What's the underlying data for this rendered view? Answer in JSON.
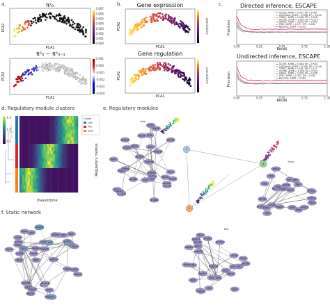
{
  "panels": {
    "a": {
      "letter": "a.",
      "title_top": "π²₀",
      "title_bottom": "π²₀ − π²₀₋₁",
      "xlabel": "PCA1",
      "ylabel": "PCA2",
      "xticks": [
        "-1",
        "0",
        "1",
        "2"
      ],
      "cbar_top": [
        "0.007",
        "0.006",
        "0.005",
        "0.004",
        "0.003",
        "0.002",
        "0.001",
        "0.000"
      ],
      "cbar_bottom": [
        "0.001",
        "0.000",
        "-0.001",
        "-0.002",
        "-0.003",
        "-0.004"
      ]
    },
    "b": {
      "letter": "b.",
      "title_top": "Gene expression",
      "title_bottom": "Gene regulation",
      "xlabel": "PCA1",
      "ylabel": "PCA2",
      "cbar_label": "pseudotime",
      "cbar_ticks": [
        "1.0",
        "0.8",
        "0.6",
        "0.4",
        "0.2",
        "0.0"
      ]
    },
    "c": {
      "letter": "c.",
      "title_top": "Directed inference, ESCAPE",
      "title_bottom": "Undirected inference, ESCAPE",
      "xlabel": "Recall",
      "ylabel": "Precision",
      "xticks": [
        "0.00",
        "0.25",
        "0.50",
        "0.75",
        "1.00"
      ],
      "legend_top": [
        "locaTE, AUPR = 0.457, EP = 0.497",
        "CellOracle, AUPR = 0.308, EP = 0.230",
        "TENET, AUPR = 0.286, EP = 0.208",
        "SCODE, AUPR = 0.283, EP = 0.211",
        "GRISLI, AUPR = 0.293, EP = 0.233",
        "PIDC, AUPR = 0.277, EP = 0.260",
        "Baseline, AUPR = 0.253"
      ],
      "legend_bottom": [
        "locaTE, AUPR = 0.464, EP = 0.504",
        "CellOracle, AUPR = 0.319, EP = 0.236",
        "TENET, AUPR = 0.291, EP = 0.217",
        "SCODE, AUPR = 0.299, EP = 0.231",
        "GRISLI, AUPR = 0.309, EP = 0.246",
        "PIDC, AUPR = 0.287, EP = 0.262",
        "Baseline, AUPR = 0.263"
      ]
    },
    "d": {
      "letter": "d. Regulatory module clusters",
      "xlabel": "Pseudotime",
      "ylabel": "Regulatory module",
      "legend_title": "Cluster",
      "legend": [
        "Late",
        "Mid",
        "Early"
      ],
      "cbar_ticks": [
        "1.5",
        "1.0",
        "0.5"
      ]
    },
    "e": {
      "letter": "e. Regulatory modules",
      "modules": [
        "Late",
        "Mid",
        "Early"
      ],
      "late_genes": [
        "Tcf7l1",
        "Nanog",
        "Tbx3",
        "Klf4",
        "Esrrb",
        "Dnmt3l",
        "Foxo1",
        "Lin28",
        "Pou5f1",
        "Sall4",
        "Zfp42",
        "Klf2",
        "Nr0b1",
        "Sox2",
        "Tcf3",
        "Hdac2",
        "Jarid2",
        "Mybl2",
        "Elf3",
        "Tfcp2l1",
        "Prdm14",
        "Kdm5b",
        "Hesx1",
        "Gata6",
        "Etv5",
        "Nr5a2",
        "Lin28a",
        "Creb3l2",
        "Rhox5",
        "Smad1",
        "Myc",
        "Utf1"
      ],
      "mid_genes": [
        "Nanog",
        "Tbx3",
        "Klf4",
        "Esrrb",
        "Otx2",
        "Foxd3",
        "Myc",
        "Sox2",
        "Hdac2",
        "Lin28",
        "Jarid2",
        "Tcf3",
        "Sall4",
        "Dnmt3l",
        "Pou5f1",
        "Rest",
        "Tcf7l1",
        "Nr0b1",
        "Zfp42",
        "Elf3",
        "Klf2",
        "Prdm14",
        "Utf1",
        "Creb3l2",
        "Etv5",
        "Hesx1",
        "Smad1",
        "Kdm5b"
      ],
      "early_genes": [
        "Nanog",
        "Dnmt3l",
        "Tbx3",
        "Klf4",
        "Esrrb",
        "Foxo1",
        "Sox2",
        "Hdac2",
        "Zfp42",
        "Sall4",
        "Pou5f1",
        "Tcf3",
        "Myc",
        "Lin28",
        "Elf3",
        "Jarid2",
        "Klf2",
        "Nr0b1",
        "Prdm14",
        "Creb3l2",
        "Utf1",
        "Etv5",
        "Nr5a2",
        "Rest",
        "Smad1",
        "Kdm5b"
      ]
    },
    "f": {
      "letter": "f. Static network",
      "genes": [
        "Tcf7",
        "Msc",
        "Gata4",
        "Hdac2",
        "Klf4",
        "Pou5f1",
        "Esrrb",
        "Sall4",
        "Lefty1",
        "Ebf1",
        "Nanog",
        "Ctbp2",
        "Sox2",
        "Foxp1",
        "Tet2",
        "Nodal",
        "Klf2",
        "Btg2",
        "Lin28",
        "Esrrb2",
        "Rest",
        "Tbx3",
        "Zfp42",
        "Creb3l2",
        "Hesx1",
        "Mybl2",
        "Elf3",
        "Dppa3",
        "Prdm14",
        "Hes1",
        "Smad1",
        "Kdm5b",
        "Otx2",
        "Fgf4",
        "Dnmt3l",
        "Sox3",
        "Epas1"
      ]
    }
  },
  "colors": {
    "grad_inferno": [
      "#000004",
      "#420a68",
      "#932667",
      "#dd513a",
      "#fca50a",
      "#fcffa4"
    ],
    "grad_seismic": [
      "#00004c",
      "#0000ff",
      "#ffffff",
      "#ff0000",
      "#800000"
    ],
    "grad_viridis": [
      "#440154",
      "#3b528b",
      "#21918c",
      "#5ec962",
      "#fde725"
    ],
    "node_late": "#a7c6e6",
    "node_mid": "#f3a96d",
    "node_early": "#8fd68b",
    "node_purple": "#9b8fc4"
  }
}
